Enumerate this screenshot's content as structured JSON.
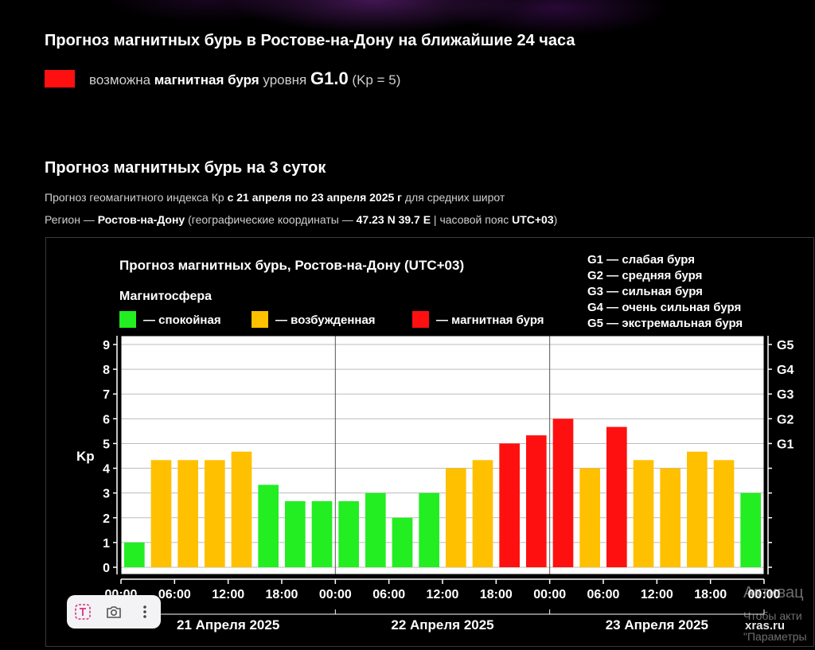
{
  "header": {
    "title": "Прогноз магнитных бурь в Ростове-на-Дону на ближайшие 24 часа",
    "now_prefix": "возможна ",
    "now_bold": "магнитная буря",
    "now_mid": " уровня ",
    "now_level": "G1.0",
    "now_kp": " (Kp = 5)",
    "now_color": "#ff1010"
  },
  "forecast": {
    "title": "Прогноз магнитных бурь на 3 суток",
    "line1_prefix": "Прогноз геомагнитного индекса Кр ",
    "line1_bold": "с 21 апреля по 23 апреля 2025 г",
    "line1_suffix": " для средних широт",
    "line2_prefix": "Регион — ",
    "line2_region": "Ростов-на-Дону",
    "line2_mid": " (географические координаты — ",
    "line2_coords": "47.23 N 39.7 E",
    "line2_mid2": " | часовой пояс ",
    "line2_tz": "UTC+03",
    "line2_suffix": ")"
  },
  "chart_data": {
    "type": "bar",
    "title": "Прогноз магнитных бурь, Ростов-на-Дону (UTC+03)",
    "legend_title": "Магнитосфера",
    "legend": [
      {
        "label": "— спокойная",
        "color": "#22ee22"
      },
      {
        "label": "— возбужденная",
        "color": "#ffc000"
      },
      {
        "label": "— магнитная буря",
        "color": "#ff1010"
      }
    ],
    "g_legend": [
      "G1 — слабая буря",
      "G2 — средняя буря",
      "G3 — сильная буря",
      "G4 — очень сильная буря",
      "G5 — экстремальная буря"
    ],
    "ylabel": "Kp",
    "ylim": [
      0,
      9
    ],
    "y_ticks": [
      0,
      1,
      2,
      3,
      4,
      5,
      6,
      7,
      8,
      9
    ],
    "right_ticks": [
      {
        "label": "G1",
        "y": 5
      },
      {
        "label": "G2",
        "y": 6
      },
      {
        "label": "G3",
        "y": 7
      },
      {
        "label": "G4",
        "y": 8
      },
      {
        "label": "G5",
        "y": 9
      }
    ],
    "x_tick_labels": [
      "00:00",
      "06:00",
      "12:00",
      "18:00",
      "00:00",
      "06:00",
      "12:00",
      "18:00",
      "00:00",
      "06:00",
      "12:00",
      "18:00",
      "00:00"
    ],
    "days": [
      "21 Апреля 2025",
      "22 Апреля 2025",
      "23 Апреля 2025"
    ],
    "values": [
      1.0,
      4.33,
      4.33,
      4.33,
      4.67,
      3.33,
      2.67,
      2.67,
      2.67,
      3.0,
      2.0,
      3.0,
      4.0,
      4.33,
      5.0,
      5.33,
      6.0,
      4.0,
      5.67,
      4.33,
      4.0,
      4.67,
      4.33,
      3.0
    ],
    "bar_colors": [
      "#22ee22",
      "#ffc000",
      "#ffc000",
      "#ffc000",
      "#ffc000",
      "#22ee22",
      "#22ee22",
      "#22ee22",
      "#22ee22",
      "#22ee22",
      "#22ee22",
      "#22ee22",
      "#ffc000",
      "#ffc000",
      "#ff1010",
      "#ff1010",
      "#ff1010",
      "#ffc000",
      "#ff1010",
      "#ffc000",
      "#ffc000",
      "#ffc000",
      "#ffc000",
      "#22ee22"
    ],
    "grid": true
  },
  "overlay": {
    "watermark_line1": "Активац",
    "watermark_line2": "Чтобы акти",
    "watermark_site": "xras.ru",
    "watermark_line3": "\"Параметры"
  }
}
